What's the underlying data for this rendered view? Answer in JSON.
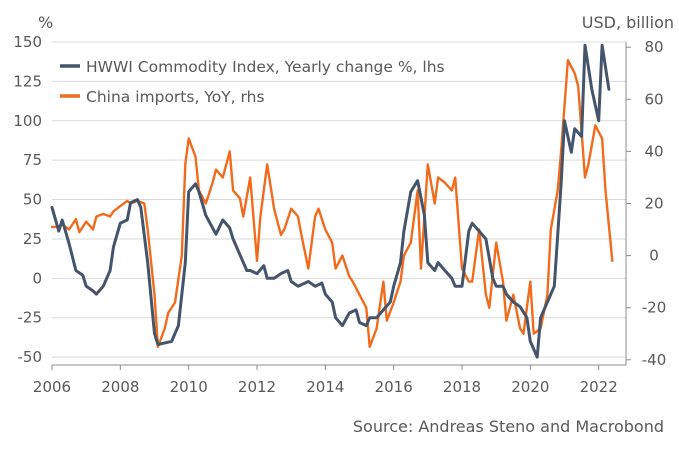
{
  "chart_data": {
    "type": "line",
    "title": "",
    "left_axis_label": "%",
    "right_axis_label": "USD, billion",
    "left_ylim": [
      -55,
      150
    ],
    "right_ylim": [
      -42,
      82
    ],
    "left_ticks": [
      -50,
      -25,
      0,
      25,
      50,
      75,
      100,
      125,
      150
    ],
    "right_ticks": [
      -40,
      -20,
      0,
      20,
      40,
      60,
      80
    ],
    "xlim": [
      2006,
      2022.8
    ],
    "x_ticks": [
      2006,
      2008,
      2010,
      2012,
      2014,
      2016,
      2018,
      2020,
      2022
    ],
    "grid": "horizontal, left axis",
    "legend_position": "top-left",
    "source": "Source: Andreas Steno and Macrobond",
    "series": [
      {
        "name": "HWWI Commodity Index, Yearly change %, lhs",
        "axis": "left",
        "color": "#44546A",
        "x": [
          2006.0,
          2006.2,
          2006.3,
          2006.5,
          2006.7,
          2006.9,
          2007.0,
          2007.2,
          2007.3,
          2007.5,
          2007.7,
          2007.8,
          2008.0,
          2008.2,
          2008.3,
          2008.5,
          2008.6,
          2008.8,
          2009.0,
          2009.1,
          2009.3,
          2009.5,
          2009.7,
          2009.9,
          2010.0,
          2010.2,
          2010.3,
          2010.5,
          2010.7,
          2010.8,
          2011.0,
          2011.2,
          2011.3,
          2011.5,
          2011.7,
          2011.8,
          2012.0,
          2012.2,
          2012.3,
          2012.5,
          2012.7,
          2012.9,
          2013.0,
          2013.2,
          2013.4,
          2013.5,
          2013.7,
          2013.9,
          2014.0,
          2014.2,
          2014.3,
          2014.5,
          2014.7,
          2014.9,
          2015.0,
          2015.2,
          2015.3,
          2015.5,
          2015.7,
          2015.9,
          2016.0,
          2016.2,
          2016.3,
          2016.5,
          2016.7,
          2016.9,
          2017.0,
          2017.2,
          2017.3,
          2017.5,
          2017.7,
          2017.8,
          2018.0,
          2018.2,
          2018.3,
          2018.5,
          2018.7,
          2018.9,
          2019.0,
          2019.2,
          2019.3,
          2019.5,
          2019.7,
          2019.9,
          2020.0,
          2020.2,
          2020.3,
          2020.5,
          2020.7,
          2020.9,
          2021.0,
          2021.2,
          2021.3,
          2021.5,
          2021.6,
          2021.8,
          2022.0,
          2022.1,
          2022.3
        ],
        "values": [
          45,
          30,
          37,
          22,
          5,
          2,
          -5,
          -8,
          -10,
          -5,
          5,
          20,
          35,
          37,
          48,
          50,
          45,
          10,
          -35,
          -42,
          -41,
          -40,
          -30,
          10,
          55,
          60,
          55,
          40,
          32,
          28,
          37,
          32,
          25,
          15,
          5,
          5,
          3,
          8,
          0,
          0,
          3,
          5,
          -2,
          -5,
          -3,
          -2,
          -5,
          -3,
          -10,
          -15,
          -25,
          -30,
          -22,
          -20,
          -28,
          -30,
          -25,
          -25,
          -20,
          -15,
          -5,
          10,
          30,
          55,
          62,
          40,
          10,
          5,
          10,
          5,
          0,
          -5,
          -5,
          30,
          35,
          30,
          25,
          0,
          -5,
          -5,
          -10,
          -15,
          -18,
          -25,
          -40,
          -50,
          -25,
          -15,
          -5,
          60,
          100,
          80,
          95,
          90,
          148,
          120,
          100,
          148,
          120
        ]
      },
      {
        "name": "China imports, YoY, rhs",
        "axis": "right",
        "color": "#F26B1D",
        "x": [
          2006.0,
          2006.2,
          2006.3,
          2006.5,
          2006.7,
          2006.8,
          2007.0,
          2007.2,
          2007.3,
          2007.5,
          2007.7,
          2007.8,
          2008.0,
          2008.2,
          2008.3,
          2008.5,
          2008.7,
          2008.8,
          2009.0,
          2009.1,
          2009.3,
          2009.4,
          2009.6,
          2009.8,
          2009.9,
          2010.0,
          2010.2,
          2010.3,
          2010.5,
          2010.7,
          2010.8,
          2011.0,
          2011.2,
          2011.3,
          2011.5,
          2011.6,
          2011.8,
          2012.0,
          2012.1,
          2012.3,
          2012.5,
          2012.7,
          2012.8,
          2013.0,
          2013.2,
          2013.3,
          2013.5,
          2013.7,
          2013.8,
          2014.0,
          2014.2,
          2014.3,
          2014.5,
          2014.7,
          2014.8,
          2015.0,
          2015.2,
          2015.3,
          2015.5,
          2015.7,
          2015.8,
          2016.0,
          2016.2,
          2016.3,
          2016.5,
          2016.7,
          2016.8,
          2017.0,
          2017.2,
          2017.3,
          2017.5,
          2017.7,
          2017.8,
          2018.0,
          2018.2,
          2018.3,
          2018.5,
          2018.7,
          2018.8,
          2019.0,
          2019.2,
          2019.3,
          2019.5,
          2019.7,
          2019.8,
          2020.0,
          2020.1,
          2020.3,
          2020.5,
          2020.6,
          2020.8,
          2020.9,
          2021.1,
          2021.3,
          2021.4,
          2021.6,
          2021.7,
          2021.9,
          2022.1,
          2022.2,
          2022.4
        ],
        "values": [
          11,
          11,
          12,
          10,
          14,
          9,
          13,
          10,
          15,
          16,
          15,
          17,
          19,
          21,
          20,
          21,
          20,
          10,
          -15,
          -35,
          -28,
          -22,
          -18,
          0,
          35,
          45,
          38,
          25,
          20,
          28,
          33,
          30,
          40,
          25,
          22,
          15,
          30,
          -2,
          15,
          35,
          18,
          8,
          10,
          18,
          15,
          8,
          -5,
          15,
          18,
          10,
          5,
          -5,
          0,
          -8,
          -10,
          -15,
          -20,
          -35,
          -28,
          -10,
          -25,
          -18,
          -10,
          0,
          5,
          25,
          -5,
          35,
          20,
          30,
          28,
          25,
          30,
          -5,
          -10,
          -10,
          10,
          -15,
          -20,
          5,
          -10,
          -25,
          -15,
          -28,
          -30,
          -10,
          -30,
          -28,
          -15,
          10,
          25,
          40,
          75,
          70,
          65,
          30,
          35,
          50,
          45,
          25,
          -2
        ]
      }
    ]
  }
}
